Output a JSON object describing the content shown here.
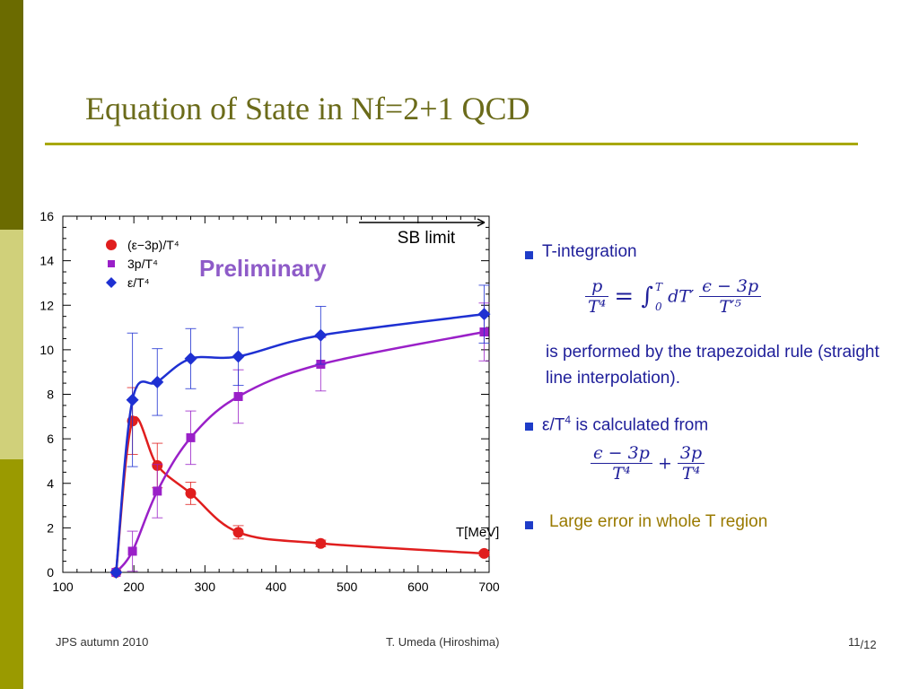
{
  "slide": {
    "title": "Equation of State in Nf=2+1 QCD",
    "colors": {
      "accent": "#a8a800",
      "text": "#1f1f9a",
      "title": "#6b6b1a",
      "highlight": "#9a7a00"
    }
  },
  "bullets": {
    "b1": "T-integration",
    "b1_para": "is performed by the trapezoidal rule (straight line interpolation).",
    "b2_pre": "ε/T",
    "b2_sup": "4",
    "b2_post": " is calculated from",
    "b3": "Large error in whole T region"
  },
  "equations": {
    "eq1_lhs_num": "p",
    "eq1_lhs_den": "T⁴",
    "eq1_mid": "= ∫",
    "eq1_upper": "T",
    "eq1_lower": "0",
    "eq1_dT": "dT′",
    "eq1_rhs_num": "ϵ − 3p",
    "eq1_rhs_den": "T′⁵",
    "eq2_a_num": "ϵ − 3p",
    "eq2_a_den": "T⁴",
    "eq2_plus": "+",
    "eq2_b_num": "3p",
    "eq2_b_den": "T⁴"
  },
  "footer": {
    "left": "JPS autumn 2010",
    "center": "T. Umeda (Hiroshima)",
    "page": "11",
    "total": "/12"
  },
  "chart_data": {
    "type": "line",
    "xlim": [
      100,
      700
    ],
    "ylim": [
      0,
      16
    ],
    "xticks": [
      100,
      200,
      300,
      400,
      500,
      600,
      700
    ],
    "yticks": [
      0,
      2,
      4,
      6,
      8,
      10,
      12,
      14,
      16
    ],
    "xlabel": "T[MeV]",
    "watermark": "Preliminary",
    "annotation": "SB limit",
    "legend_position": "top-left",
    "grid": false,
    "series": [
      {
        "name": "(ε−3p)/T⁴",
        "color": "#e01e1e",
        "marker": "circle",
        "x": [
          175,
          198,
          233,
          280,
          347,
          463,
          693
        ],
        "y": [
          0.0,
          6.8,
          4.8,
          3.55,
          1.8,
          1.3,
          0.85
        ],
        "err": [
          0.0,
          1.5,
          1.0,
          0.5,
          0.3,
          0.15,
          0.1
        ]
      },
      {
        "name": "3p/T⁴",
        "color": "#9a20c8",
        "marker": "square",
        "x": [
          175,
          198,
          233,
          280,
          347,
          463,
          693
        ],
        "y": [
          0.0,
          0.95,
          3.65,
          6.05,
          7.9,
          9.35,
          10.8
        ],
        "err": [
          0.0,
          0.9,
          1.2,
          1.2,
          1.2,
          1.2,
          1.3
        ]
      },
      {
        "name": "ε/T⁴",
        "color": "#1e30d2",
        "marker": "diamond",
        "x": [
          175,
          198,
          233,
          280,
          347,
          463,
          693
        ],
        "y": [
          0.0,
          7.75,
          8.55,
          9.6,
          9.7,
          10.65,
          11.6
        ],
        "err": [
          0.0,
          3.0,
          1.5,
          1.35,
          1.3,
          1.3,
          1.3
        ]
      }
    ]
  }
}
